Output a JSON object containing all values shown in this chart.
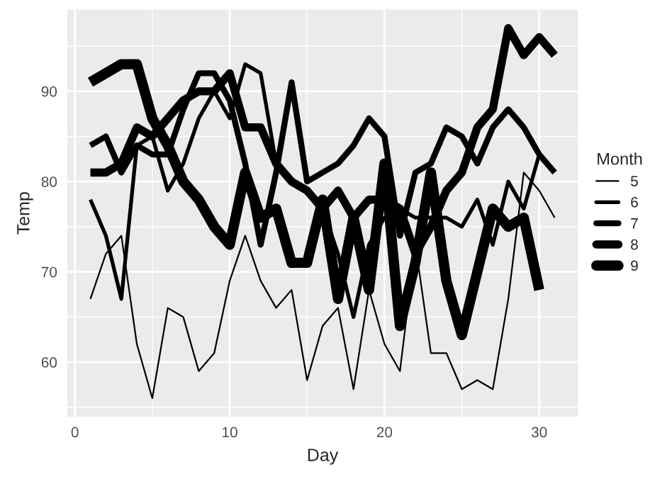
{
  "chart_data": {
    "type": "line",
    "xlabel": "Day",
    "ylabel": "Temp",
    "legend_title": "Month",
    "legend": "right",
    "grid": true,
    "xlim": [
      -0.5,
      32.5
    ],
    "ylim": [
      53.95,
      99.05
    ],
    "xticks": [
      0,
      10,
      20,
      30
    ],
    "yticks": [
      60,
      70,
      80,
      90
    ],
    "series": [
      {
        "name": "5",
        "color": "#000000",
        "x": [
          1,
          2,
          3,
          4,
          5,
          6,
          7,
          8,
          9,
          10,
          11,
          12,
          13,
          14,
          15,
          16,
          17,
          18,
          19,
          20,
          21,
          22,
          23,
          24,
          25,
          26,
          27,
          28,
          29,
          30,
          31
        ],
        "values": [
          67,
          72,
          74,
          62,
          56,
          66,
          65,
          59,
          61,
          69,
          74,
          69,
          66,
          68,
          58,
          64,
          66,
          57,
          68,
          62,
          59,
          73,
          61,
          61,
          57,
          58,
          57,
          67,
          81,
          79,
          76
        ]
      },
      {
        "name": "6",
        "color": "#000000",
        "x": [
          1,
          2,
          3,
          4,
          5,
          6,
          7,
          8,
          9,
          10,
          11,
          12,
          13,
          14,
          15,
          16,
          17,
          18,
          19,
          20,
          21,
          22,
          23,
          24,
          25,
          26,
          27,
          28,
          29,
          30
        ],
        "values": [
          78,
          74,
          67,
          84,
          85,
          79,
          82,
          87,
          90,
          87,
          93,
          92,
          82,
          80,
          79,
          77,
          72,
          65,
          73,
          76,
          77,
          76,
          76,
          76,
          75,
          78,
          73,
          80,
          77,
          83
        ]
      },
      {
        "name": "7",
        "color": "#000000",
        "x": [
          1,
          2,
          3,
          4,
          5,
          6,
          7,
          8,
          9,
          10,
          11,
          12,
          13,
          14,
          15,
          16,
          17,
          18,
          19,
          20,
          21,
          22,
          23,
          24,
          25,
          26,
          27,
          28,
          29,
          30,
          31
        ],
        "values": [
          84,
          85,
          81,
          84,
          83,
          83,
          88,
          92,
          92,
          89,
          82,
          73,
          81,
          91,
          80,
          81,
          82,
          84,
          87,
          85,
          74,
          81,
          82,
          86,
          85,
          82,
          86,
          88,
          86,
          83,
          81
        ]
      },
      {
        "name": "8",
        "color": "#000000",
        "x": [
          1,
          2,
          3,
          4,
          5,
          6,
          7,
          8,
          9,
          10,
          11,
          12,
          13,
          14,
          15,
          16,
          17,
          18,
          19,
          20,
          21,
          22,
          23,
          24,
          25,
          26,
          27,
          28,
          29,
          30,
          31
        ],
        "values": [
          81,
          81,
          82,
          86,
          85,
          87,
          89,
          90,
          90,
          92,
          86,
          86,
          82,
          80,
          79,
          77,
          79,
          76,
          78,
          78,
          77,
          72,
          75,
          79,
          81,
          86,
          88,
          97,
          94,
          96,
          94
        ]
      },
      {
        "name": "9",
        "color": "#000000",
        "x": [
          1,
          2,
          3,
          4,
          5,
          6,
          7,
          8,
          9,
          10,
          11,
          12,
          13,
          14,
          15,
          16,
          17,
          18,
          19,
          20,
          21,
          22,
          23,
          24,
          25,
          26,
          27,
          28,
          29,
          30
        ],
        "values": [
          91,
          92,
          93,
          93,
          87,
          84,
          80,
          78,
          75,
          73,
          81,
          76,
          77,
          71,
          71,
          78,
          67,
          76,
          68,
          82,
          64,
          71,
          81,
          69,
          63,
          70,
          77,
          75,
          76,
          68
        ]
      }
    ]
  }
}
